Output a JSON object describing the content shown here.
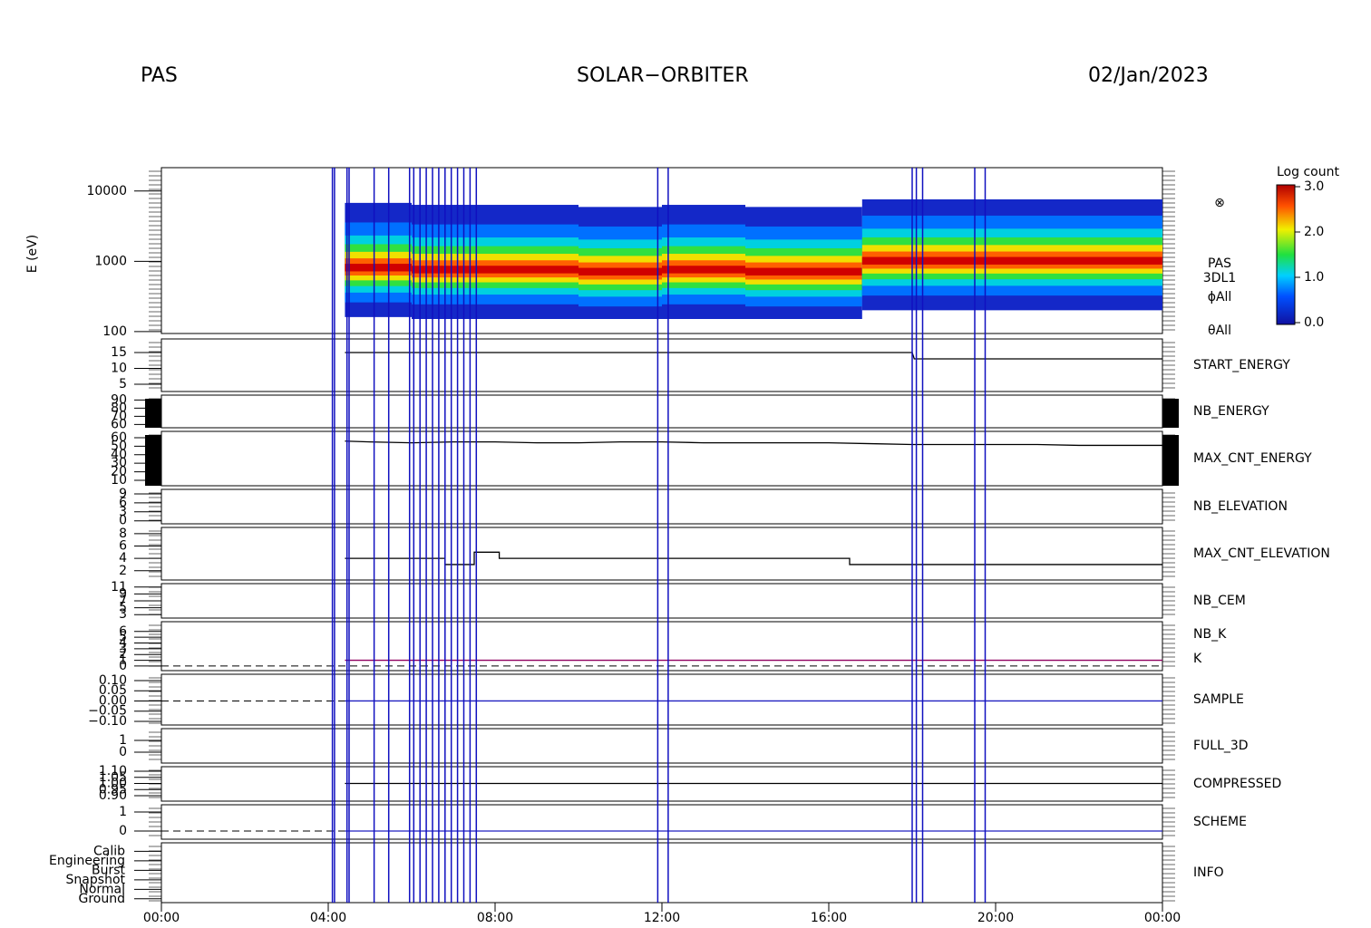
{
  "header": {
    "left": "PAS",
    "center": "SOLAR−ORBITER",
    "right": "02/Jan/2023"
  },
  "event_times": [
    4.1,
    4.15,
    4.45,
    4.5,
    5.1,
    5.45,
    5.95,
    6.05,
    6.2,
    6.35,
    6.5,
    6.65,
    6.8,
    6.95,
    7.1,
    7.25,
    7.4,
    7.55,
    11.9,
    12.15,
    18.0,
    18.1,
    18.25,
    19.5,
    19.75
  ],
  "chart_data": [
    {
      "type": "spectrogram",
      "ylabel": "E (eV)",
      "log": true,
      "ylim": [
        94,
        21500
      ],
      "yticks": [
        10000,
        1000,
        100
      ],
      "labels": [
        "PAS",
        "3DL1",
        "ϕAll",
        "θAll"
      ],
      "x": [
        4.4,
        6,
        8,
        10,
        12,
        14,
        16,
        16.8,
        18,
        20,
        22,
        24
      ],
      "values": [
        800,
        750,
        750,
        700,
        750,
        700,
        700,
        1000,
        1000,
        1000,
        1000,
        1000
      ],
      "colorbar": {
        "title": "Log count",
        "ylim": [
          0,
          3
        ],
        "yticks": [
          {
            "value": 0,
            "label": "0.0"
          },
          {
            "value": 1,
            "label": "1.0"
          },
          {
            "value": 2,
            "label": "2.0"
          },
          {
            "value": 3,
            "label": "3.0"
          }
        ]
      }
    },
    {
      "type": "line",
      "label": "START_ENERGY",
      "label_color": "#000",
      "ylim": [
        2.7,
        19.3
      ],
      "yticks": [
        15,
        10,
        5
      ],
      "x": [
        4.4,
        18.0,
        18.05,
        24
      ],
      "values": [
        15,
        15,
        13,
        13
      ],
      "color": "#000"
    },
    {
      "type": "line",
      "label": "NB_ENERGY",
      "label_color": "#2020c0",
      "ylim": [
        56,
        96
      ],
      "yticks": [
        90,
        80,
        70,
        60
      ]
    },
    {
      "type": "line",
      "label": "MAX_CNT_ENERGY",
      "label_color": "#000",
      "ylim": [
        3.6,
        67.4
      ],
      "yticks": [
        60,
        50,
        40,
        30,
        20,
        10
      ],
      "x": [
        4.4,
        5,
        6,
        7,
        8,
        9,
        10,
        11,
        12,
        13,
        14,
        15,
        16,
        17,
        18,
        19,
        20,
        21,
        22,
        23,
        24
      ],
      "values": [
        56,
        55,
        54,
        55,
        55,
        54,
        54,
        55,
        55,
        54,
        54,
        54,
        54,
        53,
        52,
        52,
        52,
        52,
        51,
        51,
        51
      ],
      "color": "#000"
    },
    {
      "type": "line",
      "label": "NB_ELEVATION",
      "label_color": "#2020c0",
      "ylim": [
        -1,
        10.5
      ],
      "yticks": [
        9,
        6,
        3,
        0
      ]
    },
    {
      "type": "line",
      "label": "MAX_CNT_ELEVATION",
      "label_color": "#000",
      "ylim": [
        0.5,
        9
      ],
      "yticks": [
        8,
        6,
        4,
        2
      ],
      "x": [
        4.4,
        6.8,
        6.8,
        7.5,
        7.5,
        8.1,
        8.1,
        16.5,
        16.5,
        24
      ],
      "values": [
        4,
        4,
        3,
        3,
        5,
        5,
        4,
        4,
        3,
        3
      ],
      "color": "#000"
    },
    {
      "type": "line",
      "label": "NB_CEM",
      "label_color": "#2020c0",
      "ylim": [
        2,
        12
      ],
      "yticks": [
        11,
        9,
        7,
        5,
        3
      ]
    },
    {
      "type": "line",
      "labels": [
        "NB_K",
        "K"
      ],
      "label_colors": [
        "#e02020",
        "#2020c0"
      ],
      "ylim": [
        -0.8,
        7.7
      ],
      "yticks": [
        6,
        5,
        4,
        3,
        2,
        1,
        0
      ],
      "x": [
        4.4,
        24
      ],
      "values": [
        1,
        1
      ],
      "color": "#900060",
      "dashed_zero": true
    },
    {
      "type": "line",
      "label": "SAMPLE",
      "label_color": "#2020c0",
      "ylim": [
        -0.118,
        0.131
      ],
      "yticks": [
        {
          "value": 0.1,
          "label": "0.10"
        },
        {
          "value": 0.05,
          "label": "0.05"
        },
        {
          "value": 0,
          "label": "0.00"
        },
        {
          "value": -0.05,
          "label": "−0.05"
        },
        {
          "value": -0.1,
          "label": "−0.10"
        }
      ],
      "x": [
        4.4,
        24
      ],
      "values": [
        0,
        0
      ],
      "color": "#2020c0",
      "dashed_zero": true
    },
    {
      "type": "line",
      "label": "FULL_3D",
      "label_color": "#2020c0",
      "ylim": [
        -0.92,
        2
      ],
      "yticks": [
        1,
        0
      ]
    },
    {
      "type": "line",
      "label": "COMPRESSED",
      "label_color": "#000",
      "ylim": [
        0.856,
        1.137
      ],
      "yticks": [
        {
          "value": 1.1,
          "label": "1.10"
        },
        {
          "value": 1.05,
          "label": "1.05"
        },
        {
          "value": 1,
          "label": "1.00"
        },
        {
          "value": 0.95,
          "label": "0.95"
        },
        {
          "value": 0.9,
          "label": "0.90"
        }
      ],
      "x": [
        4.4,
        24
      ],
      "values": [
        1,
        1
      ],
      "color": "#000"
    },
    {
      "type": "line",
      "label": "SCHEME",
      "label_color": "#000",
      "ylim": [
        -0.43,
        1.38
      ],
      "yticks": [
        1,
        0
      ],
      "x": [
        4.4,
        24
      ],
      "values": [
        0,
        0
      ],
      "color": "#2020c0",
      "dashed_zero": true
    },
    {
      "type": "category",
      "label": "INFO",
      "label_color": "#000",
      "ylim": [
        -0.4,
        5.9
      ],
      "categories": [
        "Ground",
        "Normal",
        "Snapshot",
        "Burst",
        "Engineering",
        "Calib"
      ],
      "xlim": [
        0,
        24
      ],
      "xticks": [
        {
          "value": 0,
          "label": "00:00"
        },
        {
          "value": 4,
          "label": "04:00"
        },
        {
          "value": 8,
          "label": "08:00"
        },
        {
          "value": 12,
          "label": "12:00"
        },
        {
          "value": 16,
          "label": "16:00"
        },
        {
          "value": 20,
          "label": "20:00"
        },
        {
          "value": 24,
          "label": "00:00"
        }
      ]
    }
  ]
}
